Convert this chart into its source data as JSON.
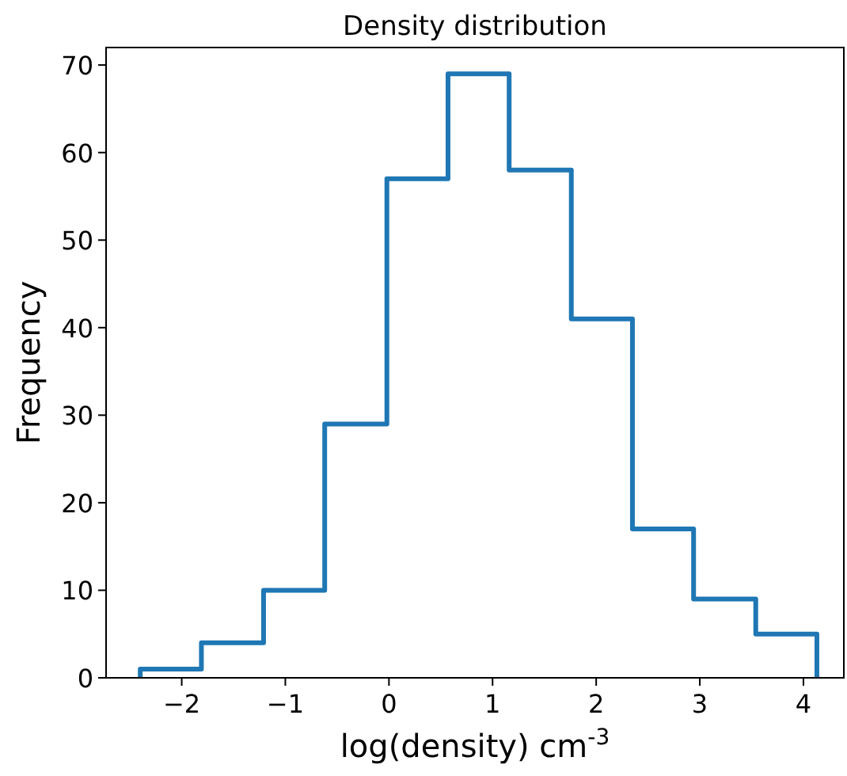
{
  "chart_data": {
    "type": "histogram",
    "title": "Density distribution",
    "xlabel": "log(density) cm$^{-3}$",
    "ylabel": "Frequency",
    "bins": [
      -2.4,
      -1.81,
      -1.21,
      -0.62,
      -0.02,
      0.57,
      1.16,
      1.76,
      2.35,
      2.94,
      3.54,
      4.13
    ],
    "values": [
      1,
      4,
      10,
      29,
      57,
      69,
      58,
      41,
      17,
      9,
      5
    ],
    "color": "#1f77b4",
    "xlim": [
      -2.73,
      4.39
    ],
    "ylim": [
      0,
      72
    ],
    "xticks": [
      {
        "value": -2,
        "label": "−2"
      },
      {
        "value": -1,
        "label": "−1"
      },
      0,
      1,
      2,
      3,
      4
    ],
    "yticks": [
      0,
      10,
      20,
      30,
      40,
      50,
      60,
      70
    ],
    "grid": false
  }
}
